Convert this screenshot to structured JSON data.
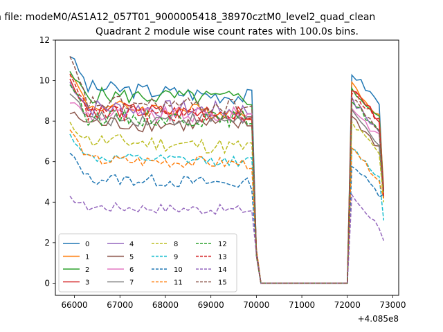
{
  "figure": {
    "suptitle": "n file: modeM0/AS1A12_057T01_9000005418_38970cztM0_level2_quad_clean",
    "title": "Quadrant 2 module wise count rates with 100.0s bins.",
    "x_offset_label": "+4.085e8"
  },
  "chart_data": {
    "type": "line",
    "title": "Quadrant 2 module wise count rates with 100.0s bins.",
    "xlabel": "",
    "ylabel": "",
    "x_offset": 408500000,
    "xlim": [
      65580,
      73130
    ],
    "ylim": [
      -0.6,
      12
    ],
    "xticks": [
      66000,
      67000,
      68000,
      69000,
      70000,
      71000,
      72000,
      73000
    ],
    "xtick_labels": [
      "66000",
      "67000",
      "68000",
      "69000",
      "70000",
      "71000",
      "72000",
      "73000"
    ],
    "yticks": [
      0,
      2,
      4,
      6,
      8,
      10,
      12
    ],
    "ytick_labels": [
      "0",
      "2",
      "4",
      "6",
      "8",
      "10",
      "12"
    ],
    "grid": false,
    "legend": {
      "placement": "lower-left",
      "columns": 4
    },
    "bin_width_s": 100,
    "segments": [
      {
        "start": 65900,
        "end": 69900
      },
      {
        "start": 70000,
        "end": 72000
      },
      {
        "start": 72100,
        "end": 72800
      }
    ],
    "series": [
      {
        "name": "0",
        "color": "#1f77b4",
        "style": "solid",
        "level1": 9.7,
        "spread": 0.4,
        "drift": -0.25,
        "start": 11.3,
        "peak": 10.4,
        "gap_edge": 4.3
      },
      {
        "name": "1",
        "color": "#ff7f0e",
        "style": "solid",
        "level1": 8.8,
        "spread": 0.35,
        "drift": -0.2,
        "start": 10.4,
        "peak": 9.8,
        "gap_edge": 4.7
      },
      {
        "name": "2",
        "color": "#2ca02c",
        "style": "solid",
        "level1": 9.3,
        "spread": 0.4,
        "drift": -0.1,
        "start": 10.3,
        "peak": 9.6,
        "gap_edge": 4.5
      },
      {
        "name": "3",
        "color": "#d62728",
        "style": "solid",
        "level1": 8.6,
        "spread": 0.4,
        "drift": -0.15,
        "start": 10.0,
        "peak": 9.6,
        "gap_edge": 4.3
      },
      {
        "name": "4",
        "color": "#9467bd",
        "style": "solid",
        "level1": 8.7,
        "spread": 0.45,
        "drift": -0.1,
        "start": 9.9,
        "peak": 9.0,
        "gap_edge": 4.6
      },
      {
        "name": "5",
        "color": "#8c564b",
        "style": "solid",
        "level1": 7.9,
        "spread": 0.4,
        "drift": -0.05,
        "start": 8.4,
        "peak": 8.2,
        "gap_edge": 4.2
      },
      {
        "name": "6",
        "color": "#e377c2",
        "style": "solid",
        "level1": 8.3,
        "spread": 0.4,
        "drift": 0.0,
        "start": 9.0,
        "peak": 8.7,
        "gap_edge": 4.4
      },
      {
        "name": "7",
        "color": "#7f7f7f",
        "style": "solid",
        "level1": 8.1,
        "spread": 0.35,
        "drift": 0.0,
        "start": 9.5,
        "peak": 8.4,
        "gap_edge": 4.5
      },
      {
        "name": "8",
        "color": "#bcbd22",
        "style": "dashed",
        "level1": 7.1,
        "spread": 0.4,
        "drift": -0.2,
        "start": 7.8,
        "peak": 7.9,
        "gap_edge": 4.0
      },
      {
        "name": "9",
        "color": "#17becf",
        "style": "dashed",
        "level1": 6.2,
        "spread": 0.25,
        "drift": -0.1,
        "start": 7.3,
        "peak": 6.7,
        "gap_edge": 3.1
      },
      {
        "name": "10",
        "color": "#1f77b4",
        "style": "dashed",
        "level1": 5.2,
        "spread": 0.3,
        "drift": -0.15,
        "start": 6.4,
        "peak": 5.9,
        "gap_edge": 4.4
      },
      {
        "name": "11",
        "color": "#ff7f0e",
        "style": "dashed",
        "level1": 6.1,
        "spread": 0.3,
        "drift": -0.1,
        "start": 7.6,
        "peak": 6.6,
        "gap_edge": 4.2
      },
      {
        "name": "12",
        "color": "#2ca02c",
        "style": "dashed",
        "level1": 8.2,
        "spread": 0.4,
        "drift": -0.05,
        "start": 9.9,
        "peak": 9.0,
        "gap_edge": 4.5
      },
      {
        "name": "13",
        "color": "#d62728",
        "style": "dashed",
        "level1": 8.4,
        "spread": 0.4,
        "drift": -0.05,
        "start": 10.5,
        "peak": 9.5,
        "gap_edge": 4.3
      },
      {
        "name": "14",
        "color": "#9467bd",
        "style": "dashed",
        "level1": 3.8,
        "spread": 0.25,
        "drift": -0.1,
        "start": 4.2,
        "peak": 4.3,
        "gap_edge": 2.1
      },
      {
        "name": "15",
        "color": "#8c564b",
        "style": "dashed",
        "level1": 8.9,
        "spread": 0.4,
        "drift": -0.1,
        "start": 11.1,
        "peak": 9.1,
        "gap_edge": 4.6
      }
    ]
  }
}
